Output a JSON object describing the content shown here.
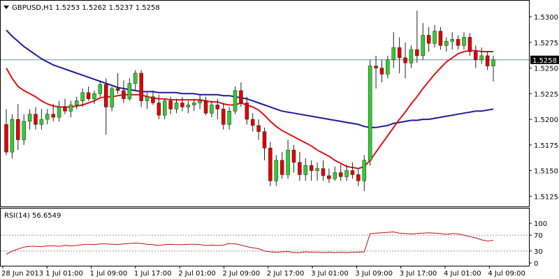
{
  "window": {
    "header_text": "GBPUSD,H1  1.5253 1.5262 1.5237 1.5258",
    "current_price_label": "1.5258"
  },
  "rsi_panel": {
    "header_text": "RSI(14) 56.6549",
    "levels": [
      "100",
      "70",
      "30",
      "0"
    ]
  },
  "colors": {
    "background": "#ffffff",
    "bull_candle": "#32cd32",
    "bear_candle": "#e00000",
    "wick": "#202020",
    "ma_fast": "#e01010",
    "ma_slow": "#1a1aa0",
    "rsi_line": "#c01010",
    "price_line": "#6f8fa8",
    "grid_dash": "#999999"
  },
  "chart_data": [
    {
      "type": "candlestick",
      "symbol": "GBPUSD",
      "timeframe": "H1",
      "ylim": [
        1.5115,
        1.5315
      ],
      "yticks": [
        "1.5300",
        "1.5275",
        "1.5250",
        "1.5225",
        "1.5200",
        "1.5175",
        "1.5150",
        "1.5125"
      ],
      "ytick_values": [
        1.53,
        1.5275,
        1.525,
        1.5225,
        1.52,
        1.5175,
        1.515,
        1.5125
      ],
      "xticks": [
        "28 Jun 2013",
        "1 Jul 01:00",
        "1 Jul 09:00",
        "1 Jul 17:00",
        "2 Jul 01:00",
        "2 Jul 09:00",
        "2 Jul 17:00",
        "3 Jul 01:00",
        "3 Jul 09:00",
        "3 Jul 17:00",
        "4 Jul 01:00",
        "4 Jul 09:00"
      ],
      "current_price": 1.5258,
      "candles": [
        [
          1.5195,
          1.521,
          1.5165,
          1.5168
        ],
        [
          1.5168,
          1.5205,
          1.5162,
          1.52
        ],
        [
          1.52,
          1.5215,
          1.517,
          1.518
        ],
        [
          1.518,
          1.5205,
          1.5175,
          1.5198
        ],
        [
          1.5198,
          1.521,
          1.519,
          1.5205
        ],
        [
          1.5205,
          1.5212,
          1.519,
          1.5195
        ],
        [
          1.5195,
          1.521,
          1.519,
          1.52
        ],
        [
          1.52,
          1.521,
          1.5195,
          1.5205
        ],
        [
          1.5205,
          1.5215,
          1.5198,
          1.5202
        ],
        [
          1.5202,
          1.5218,
          1.5198,
          1.5212
        ],
        [
          1.5212,
          1.522,
          1.5205,
          1.5208
        ],
        [
          1.5208,
          1.5218,
          1.5202,
          1.5214
        ],
        [
          1.5214,
          1.5222,
          1.521,
          1.5218
        ],
        [
          1.5218,
          1.523,
          1.5212,
          1.5226
        ],
        [
          1.5226,
          1.5232,
          1.5218,
          1.522
        ],
        [
          1.522,
          1.5228,
          1.5215,
          1.5225
        ],
        [
          1.5225,
          1.5238,
          1.5222,
          1.5234
        ],
        [
          1.5234,
          1.524,
          1.5185,
          1.5212
        ],
        [
          1.5212,
          1.5232,
          1.5208,
          1.523
        ],
        [
          1.523,
          1.5245,
          1.5225,
          1.5228
        ],
        [
          1.5228,
          1.5238,
          1.5216,
          1.522
        ],
        [
          1.522,
          1.524,
          1.5218,
          1.5235
        ],
        [
          1.5235,
          1.5248,
          1.5228,
          1.5245
        ],
        [
          1.5245,
          1.5248,
          1.5212,
          1.5218
        ],
        [
          1.5218,
          1.5226,
          1.521,
          1.5222
        ],
        [
          1.5222,
          1.5228,
          1.5214,
          1.5216
        ],
        [
          1.5216,
          1.5224,
          1.52,
          1.5204
        ],
        [
          1.5204,
          1.522,
          1.52,
          1.5218
        ],
        [
          1.5218,
          1.5222,
          1.5205,
          1.521
        ],
        [
          1.521,
          1.522,
          1.5206,
          1.5216
        ],
        [
          1.5216,
          1.5222,
          1.5208,
          1.5212
        ],
        [
          1.5212,
          1.5218,
          1.5206,
          1.5214
        ],
        [
          1.5214,
          1.522,
          1.5208,
          1.5216
        ],
        [
          1.5216,
          1.5224,
          1.521,
          1.5218
        ],
        [
          1.5218,
          1.5222,
          1.5204,
          1.5206
        ],
        [
          1.5206,
          1.5218,
          1.5202,
          1.5214
        ],
        [
          1.5214,
          1.522,
          1.52,
          1.521
        ],
        [
          1.521,
          1.5216,
          1.519,
          1.5195
        ],
        [
          1.5195,
          1.5212,
          1.519,
          1.5208
        ],
        [
          1.5208,
          1.5232,
          1.5205,
          1.5228
        ],
        [
          1.5228,
          1.5236,
          1.5212,
          1.5216
        ],
        [
          1.5216,
          1.5222,
          1.5195,
          1.52
        ],
        [
          1.52,
          1.5206,
          1.5188,
          1.5194
        ],
        [
          1.5194,
          1.52,
          1.518,
          1.5188
        ],
        [
          1.5188,
          1.5192,
          1.516,
          1.5172
        ],
        [
          1.5172,
          1.5178,
          1.5135,
          1.514
        ],
        [
          1.514,
          1.5165,
          1.5135,
          1.516
        ],
        [
          1.516,
          1.5168,
          1.5142,
          1.5146
        ],
        [
          1.5146,
          1.518,
          1.5142,
          1.517
        ],
        [
          1.517,
          1.5175,
          1.5148,
          1.5158
        ],
        [
          1.5158,
          1.5168,
          1.514,
          1.5146
        ],
        [
          1.5146,
          1.5162,
          1.514,
          1.5155
        ],
        [
          1.5155,
          1.516,
          1.514,
          1.515
        ],
        [
          1.515,
          1.5158,
          1.514,
          1.5152
        ],
        [
          1.5152,
          1.516,
          1.514,
          1.5145
        ],
        [
          1.5145,
          1.5152,
          1.5138,
          1.5142
        ],
        [
          1.5142,
          1.5154,
          1.514,
          1.5148
        ],
        [
          1.5148,
          1.5156,
          1.514,
          1.5144
        ],
        [
          1.5144,
          1.5156,
          1.514,
          1.515
        ],
        [
          1.515,
          1.5158,
          1.5142,
          1.5146
        ],
        [
          1.5146,
          1.5152,
          1.5135,
          1.514
        ],
        [
          1.514,
          1.5165,
          1.513,
          1.516
        ],
        [
          1.516,
          1.5258,
          1.5155,
          1.5252
        ],
        [
          1.5252,
          1.5262,
          1.523,
          1.525
        ],
        [
          1.525,
          1.5258,
          1.5236,
          1.5244
        ],
        [
          1.5244,
          1.5262,
          1.524,
          1.5258
        ],
        [
          1.5258,
          1.5285,
          1.525,
          1.527
        ],
        [
          1.527,
          1.528,
          1.5245,
          1.526
        ],
        [
          1.526,
          1.5275,
          1.524,
          1.5255
        ],
        [
          1.5255,
          1.5272,
          1.525,
          1.5268
        ],
        [
          1.5268,
          1.5306,
          1.5255,
          1.5262
        ],
        [
          1.5262,
          1.5294,
          1.5258,
          1.5282
        ],
        [
          1.5282,
          1.529,
          1.5266,
          1.5274
        ],
        [
          1.5274,
          1.5292,
          1.527,
          1.5286
        ],
        [
          1.5286,
          1.529,
          1.5268,
          1.5272
        ],
        [
          1.5272,
          1.528,
          1.5266,
          1.5276
        ],
        [
          1.5276,
          1.5285,
          1.5268,
          1.5278
        ],
        [
          1.5278,
          1.5282,
          1.5268,
          1.5272
        ],
        [
          1.5272,
          1.5285,
          1.5268,
          1.528
        ],
        [
          1.528,
          1.5284,
          1.5262,
          1.5266
        ],
        [
          1.5266,
          1.5272,
          1.525,
          1.5258
        ],
        [
          1.5258,
          1.527,
          1.5254,
          1.5262
        ],
        [
          1.5262,
          1.5266,
          1.5248,
          1.5252
        ],
        [
          1.5252,
          1.5262,
          1.5237,
          1.5258
        ]
      ],
      "series": [
        {
          "values": [
            1.525,
            1.524,
            1.5232,
            1.5228,
            1.5225,
            1.5222,
            1.5218,
            1.5215,
            1.5213,
            1.5212,
            1.5212,
            1.5212,
            1.5213,
            1.5214,
            1.5216,
            1.5218,
            1.5221,
            1.5222,
            1.5222,
            1.5223,
            1.5224,
            1.5224,
            1.5224,
            1.5224,
            1.5222,
            1.5221,
            1.522,
            1.522,
            1.5219,
            1.5219,
            1.5219,
            1.5219,
            1.5219,
            1.5219,
            1.5218,
            1.5217,
            1.5217,
            1.5215,
            1.5214,
            1.5214,
            1.5216,
            1.5214,
            1.5212,
            1.5209,
            1.5204,
            1.5198,
            1.5193,
            1.5189,
            1.5186,
            1.5183,
            1.518,
            1.5177,
            1.5174,
            1.517,
            1.5167,
            1.5164,
            1.516,
            1.5157,
            1.5154,
            1.5153,
            1.5152,
            1.5154,
            1.516,
            1.5168,
            1.5176,
            1.5184,
            1.5192,
            1.52,
            1.5207,
            1.5215,
            1.5222,
            1.523,
            1.5237,
            1.5244,
            1.525,
            1.5256,
            1.526,
            1.5264,
            1.5266,
            1.5267,
            1.5267,
            1.5266,
            1.5266,
            1.5266
          ]
        },
        {
          "values": [
            1.5287,
            1.5281,
            1.5276,
            1.5271,
            1.5267,
            1.5263,
            1.5259,
            1.5256,
            1.5253,
            1.5251,
            1.5249,
            1.5247,
            1.5245,
            1.5243,
            1.5241,
            1.5239,
            1.5237,
            1.5235,
            1.5233,
            1.5231,
            1.523,
            1.5229,
            1.5228,
            1.5227,
            1.5227,
            1.5227,
            1.5226,
            1.5226,
            1.5226,
            1.5226,
            1.5225,
            1.5225,
            1.5225,
            1.5224,
            1.5224,
            1.5224,
            1.5224,
            1.5223,
            1.5223,
            1.5222,
            1.5221,
            1.522,
            1.5218,
            1.5216,
            1.5214,
            1.5212,
            1.521,
            1.5208,
            1.5207,
            1.5206,
            1.5205,
            1.5204,
            1.5203,
            1.5202,
            1.5201,
            1.52,
            1.5199,
            1.5198,
            1.5197,
            1.5196,
            1.5195,
            1.5193,
            1.5192,
            1.5192,
            1.5193,
            1.5194,
            1.5196,
            1.5197,
            1.5198,
            1.5199,
            1.5199,
            1.52,
            1.52,
            1.5201,
            1.5202,
            1.5203,
            1.5204,
            1.5205,
            1.5206,
            1.5207,
            1.5208,
            1.5208,
            1.5209,
            1.521
          ]
        }
      ]
    },
    {
      "type": "line",
      "title": "RSI(14) 56.6549",
      "ylim": [
        0,
        100
      ],
      "yticks": [
        "100",
        "70",
        "30",
        "0"
      ],
      "ytick_values": [
        100,
        70,
        30,
        0
      ],
      "levels": [
        70,
        30
      ],
      "series": [
        {
          "values": [
            22,
            30,
            35,
            40,
            42,
            42,
            41,
            43,
            43,
            42,
            44,
            43,
            44,
            46,
            47,
            46,
            48,
            48,
            47,
            46,
            48,
            49,
            50,
            49,
            47,
            46,
            44,
            46,
            47,
            46,
            46,
            47,
            47,
            46,
            44,
            45,
            44,
            45,
            49,
            48,
            45,
            41,
            38,
            36,
            30,
            28,
            27,
            28,
            29,
            26,
            26,
            28,
            27,
            27,
            26,
            27,
            26,
            27,
            26,
            27,
            27,
            28,
            74,
            75,
            76,
            77,
            78,
            75,
            74,
            73,
            74,
            75,
            76,
            75,
            74,
            72,
            74,
            73,
            70,
            66,
            63,
            58,
            55,
            57
          ]
        }
      ]
    }
  ]
}
